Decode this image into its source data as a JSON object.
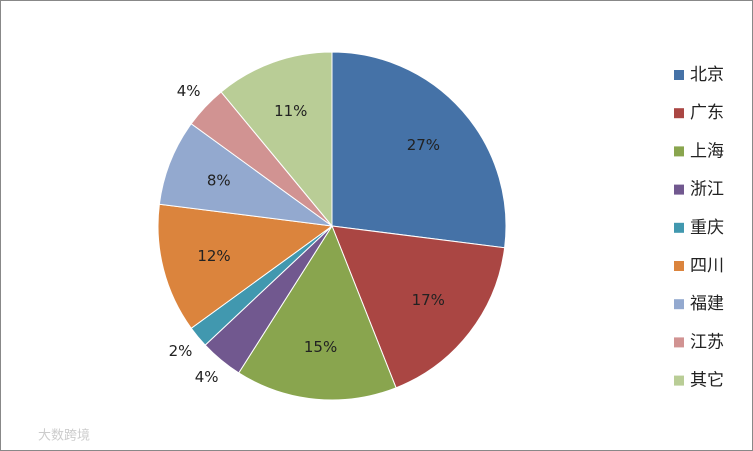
{
  "chart_data": {
    "type": "pie",
    "categories": [
      "北京",
      "广东",
      "上海",
      "浙江",
      "重庆",
      "四川",
      "福建",
      "江苏",
      "其它"
    ],
    "values": [
      27,
      17,
      15,
      4,
      2,
      12,
      8,
      4,
      11
    ],
    "value_labels": [
      "27%",
      "17%",
      "15%",
      "4%",
      "2%",
      "12%",
      "8%",
      "4%",
      "11%"
    ],
    "colors": [
      "#4572a7",
      "#aa4643",
      "#89a54e",
      "#71588f",
      "#4198af",
      "#db843d",
      "#93a9cf",
      "#d19392",
      "#b9cd96"
    ],
    "legend": "right"
  },
  "watermark": "大数跨境"
}
